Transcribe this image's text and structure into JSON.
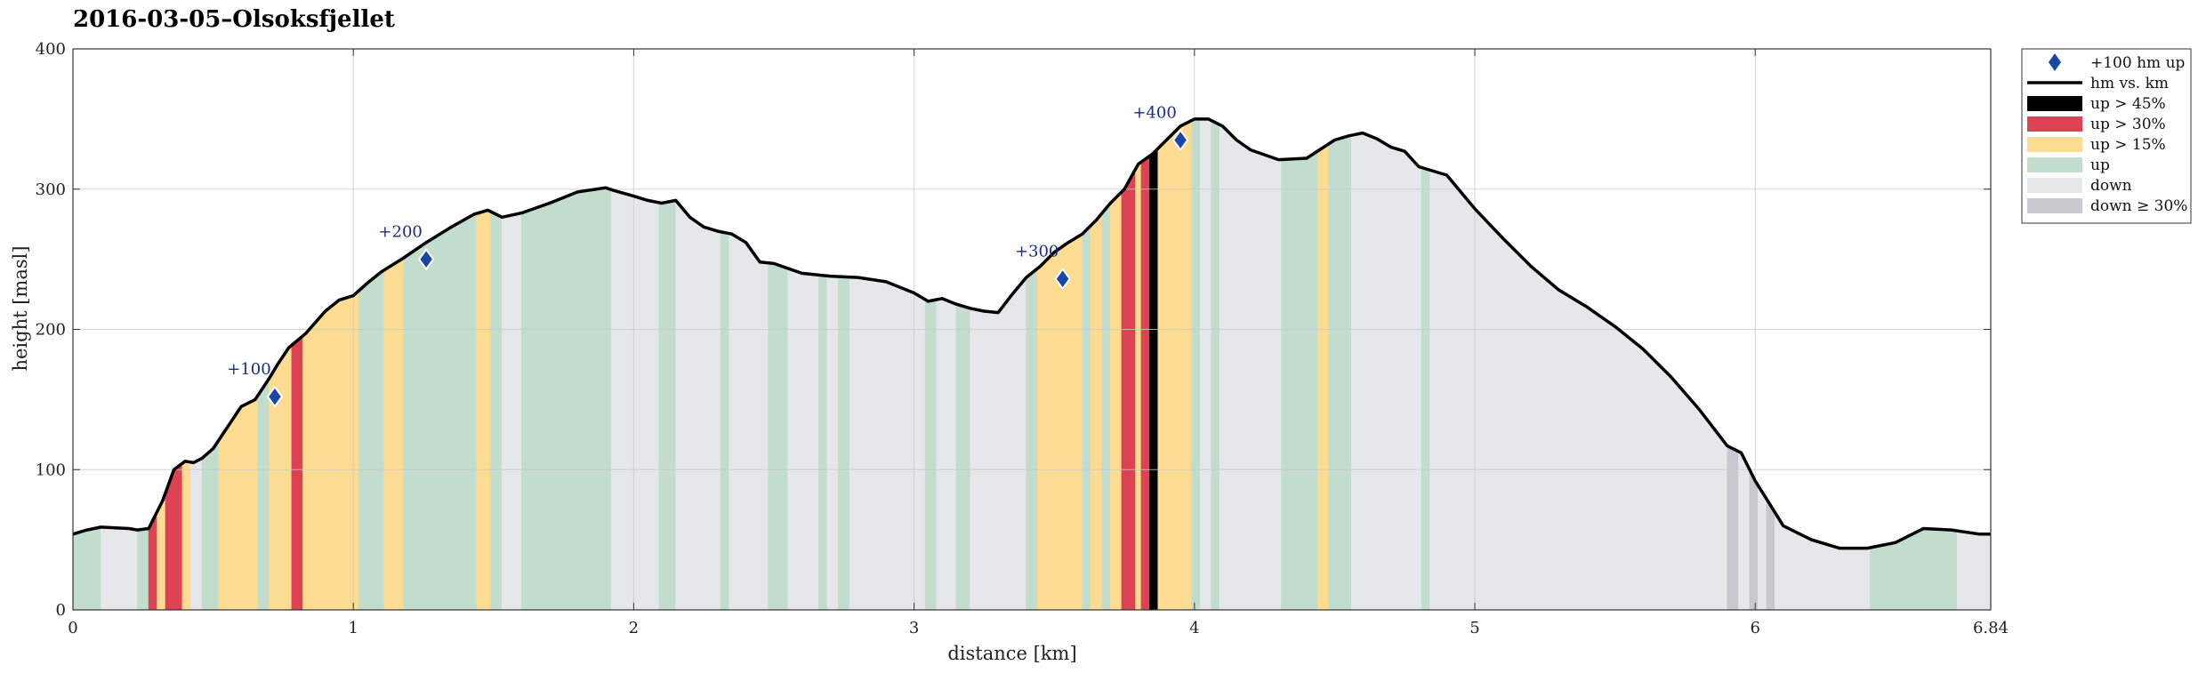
{
  "chart_data": {
    "type": "area",
    "title": "2016-03-05–Olsoksfjellet",
    "xlabel": "distance [km]",
    "ylabel": "height [masl]",
    "xlim": [
      0,
      6.84
    ],
    "ylim": [
      0,
      400
    ],
    "x_ticks": [
      "0",
      "1",
      "2",
      "3",
      "4",
      "5",
      "6",
      "6.84"
    ],
    "y_ticks": [
      "0",
      "100",
      "200",
      "300",
      "400"
    ],
    "grid": true,
    "legend_position": "outside-right",
    "legend": [
      {
        "key": "milestone",
        "label": "+100 hm up"
      },
      {
        "key": "line",
        "label": "hm vs. km"
      },
      {
        "key": "up45",
        "label": "up > 45%"
      },
      {
        "key": "up30",
        "label": "up > 30%"
      },
      {
        "key": "up15",
        "label": "up > 15%"
      },
      {
        "key": "up",
        "label": "up"
      },
      {
        "key": "down",
        "label": "down"
      },
      {
        "key": "down30",
        "label": "down ≥ 30%"
      }
    ],
    "colors": {
      "up45": "#000000",
      "up30": "#dc4254",
      "up15": "#fcdc92",
      "up": "#c2dccd",
      "down": "#e6e7ea",
      "down30": "#c7c9cf",
      "line": "#000000",
      "milestone": "#1a47a6"
    },
    "profile": {
      "x": [
        0,
        0.05,
        0.1,
        0.2,
        0.23,
        0.27,
        0.32,
        0.36,
        0.4,
        0.43,
        0.46,
        0.5,
        0.55,
        0.6,
        0.65,
        0.7,
        0.73,
        0.77,
        0.83,
        0.9,
        0.95,
        1.0,
        1.05,
        1.1,
        1.18,
        1.26,
        1.35,
        1.43,
        1.48,
        1.53,
        1.6,
        1.7,
        1.8,
        1.9,
        1.93,
        2.0,
        2.05,
        2.1,
        2.15,
        2.2,
        2.25,
        2.3,
        2.35,
        2.4,
        2.45,
        2.5,
        2.6,
        2.7,
        2.8,
        2.9,
        3.0,
        3.05,
        3.1,
        3.15,
        3.2,
        3.25,
        3.3,
        3.35,
        3.4,
        3.45,
        3.5,
        3.55,
        3.6,
        3.65,
        3.7,
        3.75,
        3.8,
        3.85,
        3.9,
        3.95,
        4.0,
        4.05,
        4.1,
        4.15,
        4.2,
        4.3,
        4.4,
        4.5,
        4.55,
        4.6,
        4.65,
        4.7,
        4.75,
        4.8,
        4.9,
        5.0,
        5.1,
        5.2,
        5.3,
        5.4,
        5.5,
        5.6,
        5.7,
        5.8,
        5.9,
        5.95,
        6.0,
        6.05,
        6.1,
        6.2,
        6.3,
        6.4,
        6.5,
        6.6,
        6.7,
        6.8,
        6.84
      ],
      "y": [
        54,
        57,
        59,
        58,
        57,
        58,
        78,
        100,
        106,
        105,
        108,
        115,
        130,
        145,
        150,
        165,
        175,
        187,
        197,
        213,
        221,
        224,
        233,
        241,
        251,
        262,
        273,
        282,
        285,
        280,
        283,
        290,
        298,
        301,
        299,
        295,
        292,
        290,
        292,
        280,
        273,
        270,
        268,
        262,
        248,
        247,
        240,
        238,
        237,
        234,
        226,
        220,
        222,
        218,
        215,
        213,
        212,
        225,
        237,
        245,
        255,
        262,
        268,
        278,
        290,
        300,
        318,
        325,
        335,
        345,
        350,
        350,
        345,
        335,
        328,
        321,
        322,
        335,
        338,
        340,
        336,
        330,
        327,
        316,
        310,
        286,
        265,
        245,
        228,
        216,
        202,
        186,
        166,
        143,
        117,
        112,
        92,
        76,
        60,
        50,
        44,
        44,
        48,
        58,
        57,
        54,
        54
      ]
    },
    "segments": [
      {
        "x0": 0.0,
        "x1": 0.1,
        "cat": "up"
      },
      {
        "x0": 0.1,
        "x1": 0.23,
        "cat": "down"
      },
      {
        "x0": 0.23,
        "x1": 0.27,
        "cat": "up"
      },
      {
        "x0": 0.27,
        "x1": 0.3,
        "cat": "up30"
      },
      {
        "x0": 0.3,
        "x1": 0.33,
        "cat": "up15"
      },
      {
        "x0": 0.33,
        "x1": 0.39,
        "cat": "up30"
      },
      {
        "x0": 0.39,
        "x1": 0.42,
        "cat": "up15"
      },
      {
        "x0": 0.42,
        "x1": 0.46,
        "cat": "down"
      },
      {
        "x0": 0.46,
        "x1": 0.52,
        "cat": "up"
      },
      {
        "x0": 0.52,
        "x1": 0.66,
        "cat": "up15"
      },
      {
        "x0": 0.66,
        "x1": 0.7,
        "cat": "up"
      },
      {
        "x0": 0.7,
        "x1": 0.78,
        "cat": "up15"
      },
      {
        "x0": 0.78,
        "x1": 0.82,
        "cat": "up30"
      },
      {
        "x0": 0.82,
        "x1": 1.02,
        "cat": "up15"
      },
      {
        "x0": 1.02,
        "x1": 1.11,
        "cat": "up"
      },
      {
        "x0": 1.11,
        "x1": 1.18,
        "cat": "up15"
      },
      {
        "x0": 1.18,
        "x1": 1.44,
        "cat": "up"
      },
      {
        "x0": 1.44,
        "x1": 1.49,
        "cat": "up15"
      },
      {
        "x0": 1.49,
        "x1": 1.53,
        "cat": "up"
      },
      {
        "x0": 1.53,
        "x1": 1.6,
        "cat": "down"
      },
      {
        "x0": 1.6,
        "x1": 1.92,
        "cat": "up"
      },
      {
        "x0": 1.92,
        "x1": 2.09,
        "cat": "down"
      },
      {
        "x0": 2.09,
        "x1": 2.15,
        "cat": "up"
      },
      {
        "x0": 2.15,
        "x1": 2.31,
        "cat": "down"
      },
      {
        "x0": 2.31,
        "x1": 2.34,
        "cat": "up"
      },
      {
        "x0": 2.34,
        "x1": 2.48,
        "cat": "down"
      },
      {
        "x0": 2.48,
        "x1": 2.55,
        "cat": "up"
      },
      {
        "x0": 2.55,
        "x1": 2.66,
        "cat": "down"
      },
      {
        "x0": 2.66,
        "x1": 2.69,
        "cat": "up"
      },
      {
        "x0": 2.69,
        "x1": 2.73,
        "cat": "down"
      },
      {
        "x0": 2.73,
        "x1": 2.77,
        "cat": "up"
      },
      {
        "x0": 2.77,
        "x1": 3.04,
        "cat": "down"
      },
      {
        "x0": 3.04,
        "x1": 3.08,
        "cat": "up"
      },
      {
        "x0": 3.08,
        "x1": 3.15,
        "cat": "down"
      },
      {
        "x0": 3.15,
        "x1": 3.2,
        "cat": "up"
      },
      {
        "x0": 3.2,
        "x1": 3.4,
        "cat": "down"
      },
      {
        "x0": 3.4,
        "x1": 3.44,
        "cat": "up"
      },
      {
        "x0": 3.44,
        "x1": 3.6,
        "cat": "up15"
      },
      {
        "x0": 3.6,
        "x1": 3.63,
        "cat": "up"
      },
      {
        "x0": 3.63,
        "x1": 3.67,
        "cat": "up15"
      },
      {
        "x0": 3.67,
        "x1": 3.7,
        "cat": "up"
      },
      {
        "x0": 3.7,
        "x1": 3.74,
        "cat": "up15"
      },
      {
        "x0": 3.74,
        "x1": 3.79,
        "cat": "up30"
      },
      {
        "x0": 3.79,
        "x1": 3.81,
        "cat": "up15"
      },
      {
        "x0": 3.81,
        "x1": 3.84,
        "cat": "up30"
      },
      {
        "x0": 3.84,
        "x1": 3.87,
        "cat": "up45"
      },
      {
        "x0": 3.87,
        "x1": 3.99,
        "cat": "up15"
      },
      {
        "x0": 3.99,
        "x1": 4.02,
        "cat": "up"
      },
      {
        "x0": 4.02,
        "x1": 4.06,
        "cat": "down"
      },
      {
        "x0": 4.06,
        "x1": 4.09,
        "cat": "up"
      },
      {
        "x0": 4.09,
        "x1": 4.31,
        "cat": "down"
      },
      {
        "x0": 4.31,
        "x1": 4.44,
        "cat": "up"
      },
      {
        "x0": 4.44,
        "x1": 4.48,
        "cat": "up15"
      },
      {
        "x0": 4.48,
        "x1": 4.56,
        "cat": "up"
      },
      {
        "x0": 4.56,
        "x1": 4.81,
        "cat": "down"
      },
      {
        "x0": 4.81,
        "x1": 4.84,
        "cat": "up"
      },
      {
        "x0": 4.84,
        "x1": 5.9,
        "cat": "down"
      },
      {
        "x0": 5.9,
        "x1": 5.94,
        "cat": "down30"
      },
      {
        "x0": 5.94,
        "x1": 5.98,
        "cat": "down"
      },
      {
        "x0": 5.98,
        "x1": 6.01,
        "cat": "down30"
      },
      {
        "x0": 6.01,
        "x1": 6.04,
        "cat": "down"
      },
      {
        "x0": 6.04,
        "x1": 6.07,
        "cat": "down30"
      },
      {
        "x0": 6.07,
        "x1": 6.41,
        "cat": "down"
      },
      {
        "x0": 6.41,
        "x1": 6.72,
        "cat": "up"
      },
      {
        "x0": 6.72,
        "x1": 6.84,
        "cat": "down"
      }
    ],
    "milestones": [
      {
        "x": 0.72,
        "y": 152,
        "label": "+100"
      },
      {
        "x": 1.26,
        "y": 250,
        "label": "+200"
      },
      {
        "x": 3.53,
        "y": 236,
        "label": "+300"
      },
      {
        "x": 3.95,
        "y": 335,
        "label": "+400"
      }
    ]
  }
}
